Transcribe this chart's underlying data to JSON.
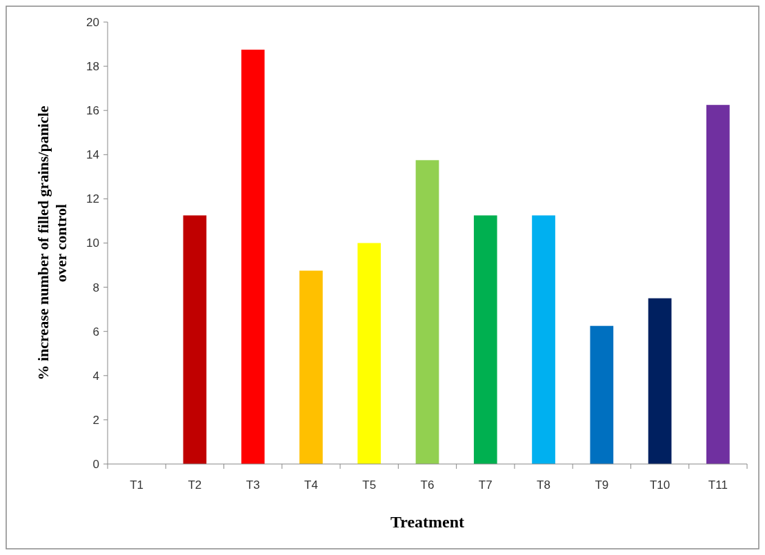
{
  "chart_data": {
    "type": "bar",
    "xlabel": "Treatment",
    "ylabel": "% increase number of filled grains/panicle over control",
    "categories": [
      "T1",
      "T2",
      "T3",
      "T4",
      "T5",
      "T6",
      "T7",
      "T8",
      "T9",
      "T10",
      "T11"
    ],
    "values": [
      0,
      11.25,
      18.75,
      8.75,
      10,
      13.75,
      11.25,
      11.25,
      6.25,
      7.5,
      16.25
    ],
    "colors": [
      "#c00000",
      "#c00000",
      "#ff0000",
      "#ffc000",
      "#ffff00",
      "#92d050",
      "#00b050",
      "#00b0f0",
      "#0070c0",
      "#002060",
      "#7030a0"
    ],
    "ylim": [
      0,
      20
    ],
    "yticks": [
      0,
      2,
      4,
      6,
      8,
      10,
      12,
      14,
      16,
      18,
      20
    ]
  }
}
